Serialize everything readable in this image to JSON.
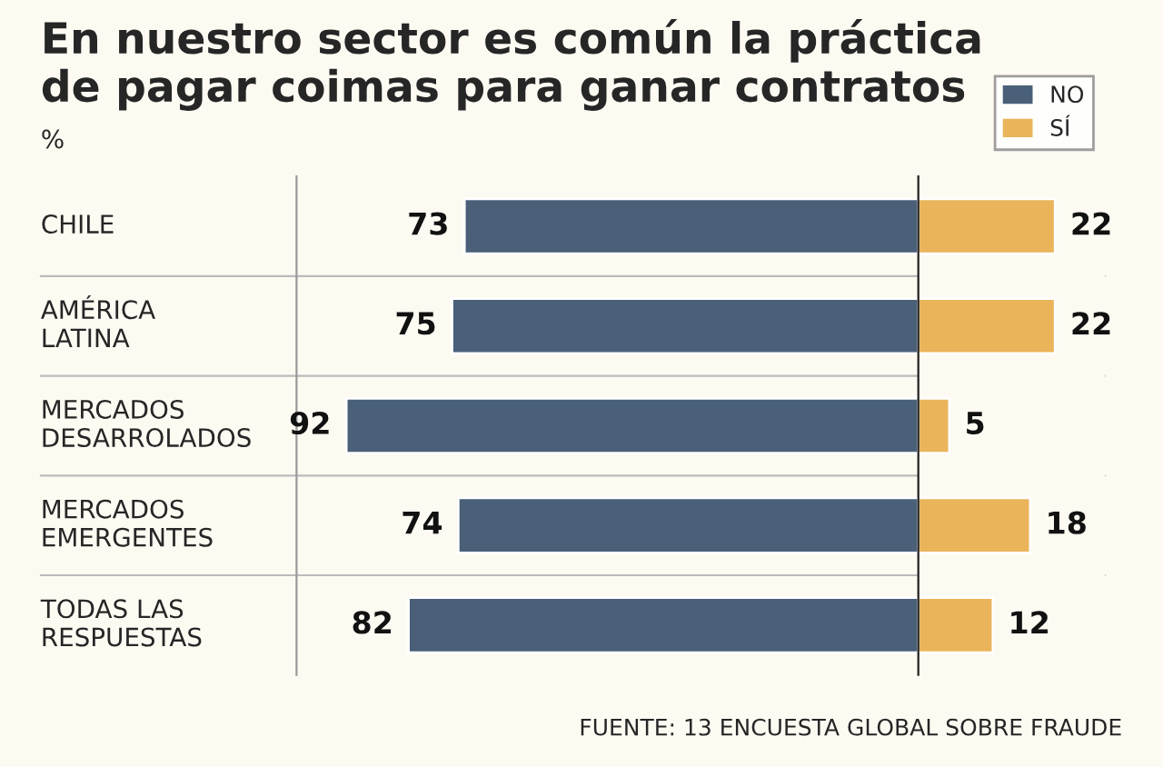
{
  "chart_data": [
    {
      "type": "bar",
      "orientation": "horizontal",
      "title": "En nuestro sector es común la práctica\nde pagar coimas para ganar contratos",
      "ylabel": "%",
      "categories": [
        "CHILE",
        "AMÉRICA\nLATINA",
        "MERCADOS\nDESARROLADOS",
        "MERCADOS\nEMERGENTES",
        "TODAS LAS\nRESPUESTAS"
      ],
      "xlim": [
        100,
        0
      ],
      "tick_labels": "y",
      "series": [
        {
          "name": "NO",
          "color": "#4a6079",
          "values": [
            73,
            75,
            92,
            74,
            82
          ]
        }
      ],
      "data_labels": true,
      "legend": "top right"
    },
    {
      "type": "bar",
      "orientation": "horizontal",
      "categories": [
        null,
        null,
        null,
        null,
        null
      ],
      "xlim": [
        0,
        30
      ],
      "tick_labels": false,
      "series": [
        {
          "name": "SÍ",
          "color": "#eab45a",
          "values": [
            22,
            22,
            5,
            18,
            12
          ]
        }
      ],
      "data_labels": true,
      "legend": "top right",
      "annotations": [
        "FUENTE: 13 ENCUESTA GLOBAL SOBRE FRAUDE"
      ]
    }
  ]
}
